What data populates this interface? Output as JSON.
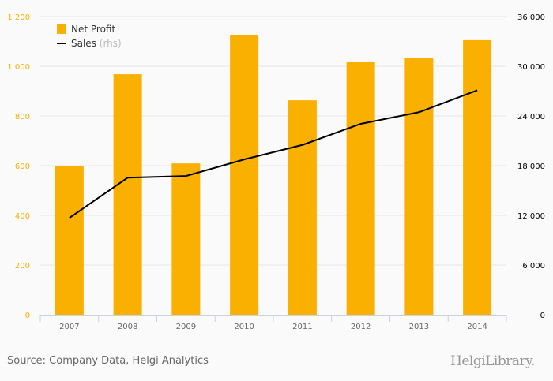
{
  "chart_data": {
    "type": "bar+line",
    "categories": [
      "2007",
      "2008",
      "2009",
      "2010",
      "2011",
      "2012",
      "2013",
      "2014"
    ],
    "series": [
      {
        "name": "Net Profit",
        "type": "bar",
        "axis": "left",
        "color": "#f9b000",
        "values": [
          597,
          968,
          609,
          1127,
          863,
          1016,
          1035,
          1105
        ]
      },
      {
        "name": "Sales",
        "name_suffix": "(rhs)",
        "type": "line",
        "axis": "right",
        "color": "#000000",
        "values": [
          11700,
          16550,
          16750,
          18750,
          20500,
          23050,
          24450,
          27100
        ]
      }
    ],
    "left_axis": {
      "range": [
        0,
        1200
      ],
      "ticks": [
        "0",
        "200",
        "400",
        "600",
        "800",
        "1 000",
        "1 200"
      ],
      "color": "#f9b000"
    },
    "right_axis": {
      "range": [
        0,
        36000
      ],
      "ticks": [
        "0",
        "6 000",
        "12 000",
        "18 000",
        "24 000",
        "30 000",
        "36 000"
      ],
      "color": "#000000"
    },
    "grid": true,
    "legend": "top-left"
  },
  "footer": {
    "source": "Source: Company Data, Helgi Analytics",
    "logo_text": "HelgiLibrary."
  }
}
